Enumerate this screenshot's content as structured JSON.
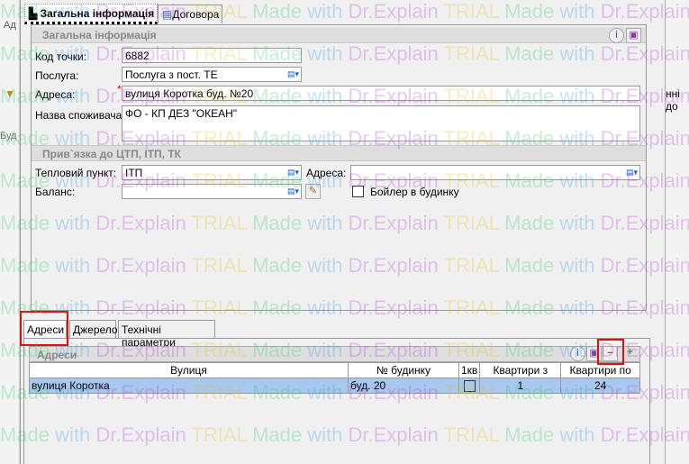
{
  "background": {
    "left_fragment_1": "Ад",
    "left_fragment_2": "Буд",
    "right_fragment": "нні до"
  },
  "tabs": [
    {
      "label": "Загальна інформація",
      "active": true
    },
    {
      "label": "Договора",
      "active": false
    }
  ],
  "general": {
    "header": "Загальна інформація",
    "code_label": "Код точки:",
    "code_value": "6882",
    "service_label": "Послуга:",
    "service_value": "Послуга з пост. ТЕ",
    "address_label": "Адреса:",
    "address_value": "вулиця Коротка буд. №20",
    "consumer_label": "Назва споживача:",
    "consumer_value": "ФО - КП ДЕЗ \"ОКЕАН\""
  },
  "binding": {
    "header": "Прив`язка до ЦТП, ІТП, ТК",
    "heat_point_label": "Тепловий пункт:",
    "heat_point_value": "ІТП",
    "address_label": "Адреса:",
    "address_value": "",
    "balance_label": "Баланс:",
    "balance_value": "",
    "boiler_label": "Бойлер в будинку",
    "boiler_checked": false
  },
  "bottom_tabs": [
    {
      "label": "Адреси",
      "active": true
    },
    {
      "label": "Джерело"
    },
    {
      "label": "Технічні параметри"
    }
  ],
  "addresses": {
    "header": "Адреси",
    "columns": [
      "Вулиця",
      "№ будинку",
      "1кв",
      "Квартири з",
      "Квартири по"
    ],
    "rows": [
      {
        "street": "вулиця Коротка",
        "house": "буд. 20",
        "one_apt": false,
        "apt_from": "1",
        "apt_to": "24"
      }
    ]
  },
  "highlight_color": "#e01010",
  "watermark": {
    "w1": "Made",
    "w2": "with",
    "w3": "Dr.Explain",
    "w4": "TRIAL"
  }
}
